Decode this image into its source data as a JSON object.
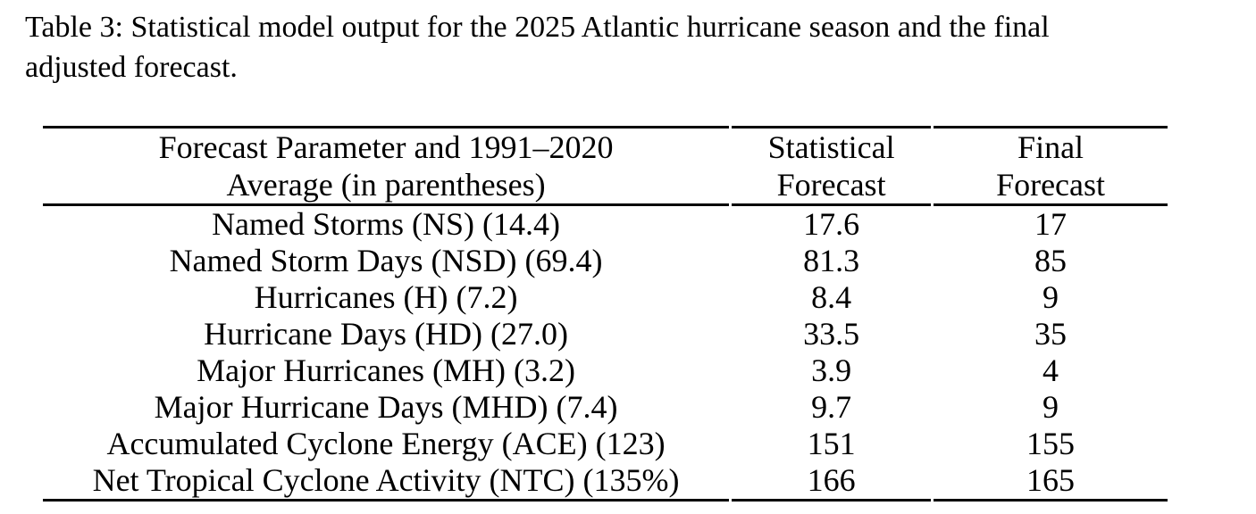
{
  "caption": {
    "line1": "Table 3: Statistical model output for the 2025 Atlantic hurricane season and the final",
    "line2": "adjusted forecast."
  },
  "table": {
    "header": {
      "parameter": {
        "line1": "Forecast Parameter and 1991–2020",
        "line2": "Average (in parentheses)"
      },
      "statistical": {
        "line1": "Statistical",
        "line2": "Forecast"
      },
      "final": {
        "line1": "Final",
        "line2": "Forecast"
      }
    },
    "rows": [
      {
        "parameter": "Named Storms (NS) (14.4)",
        "statistical": "17.6",
        "final": "17"
      },
      {
        "parameter": "Named Storm Days (NSD) (69.4)",
        "statistical": "81.3",
        "final": "85"
      },
      {
        "parameter": "Hurricanes (H) (7.2)",
        "statistical": "8.4",
        "final": "9"
      },
      {
        "parameter": "Hurricane Days (HD) (27.0)",
        "statistical": "33.5",
        "final": "35"
      },
      {
        "parameter": "Major Hurricanes (MH) (3.2)",
        "statistical": "3.9",
        "final": "4"
      },
      {
        "parameter": "Major Hurricane Days (MHD) (7.4)",
        "statistical": "9.7",
        "final": "9"
      },
      {
        "parameter": "Accumulated Cyclone Energy (ACE) (123)",
        "statistical": "151",
        "final": "155"
      },
      {
        "parameter": "Net Tropical Cyclone Activity (NTC) (135%)",
        "statistical": "166",
        "final": "165"
      }
    ],
    "colors": {
      "text": "#000000",
      "background": "#ffffff",
      "rule": "#000000"
    }
  }
}
